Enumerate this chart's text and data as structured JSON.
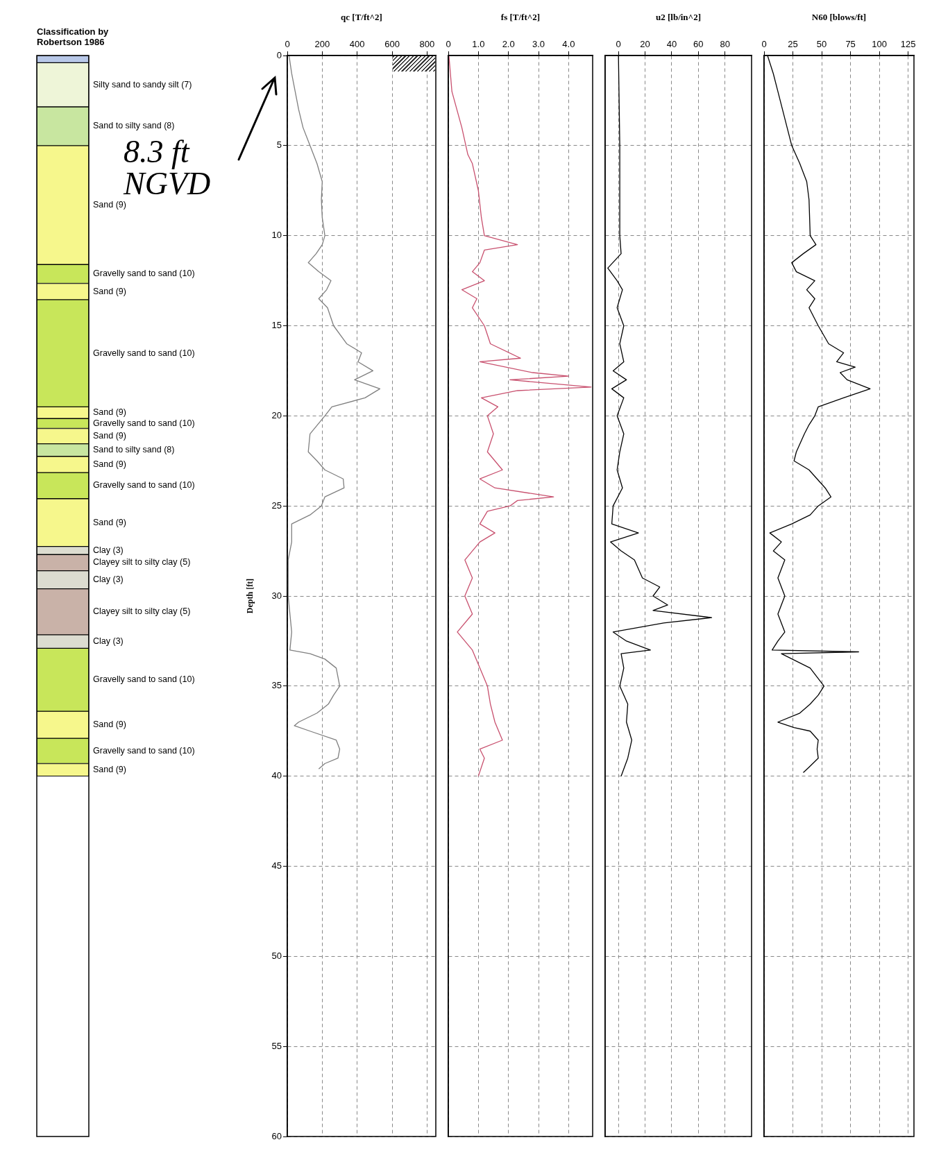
{
  "chart_data": [
    {
      "type": "bar",
      "title": "Classification by Robertson 1986",
      "categories": [
        null
      ],
      "stacked": true,
      "ylim": [
        60,
        0
      ],
      "tick_labels": false,
      "series": [
        {
          "color": "#b8c8e8",
          "values": [
            0.4
          ]
        },
        {
          "name": "Silty sand to sandy silt (7)",
          "color": "#eef5d8",
          "values": [
            2.45
          ]
        },
        {
          "name": "Sand to silty sand (8)",
          "color": "#c8e6a0",
          "values": [
            2.15
          ]
        },
        {
          "name": "Sand (9)",
          "color": "#f6f78c",
          "values": [
            6.6
          ]
        },
        {
          "name": "Gravelly sand to sand (10)",
          "color": "#c8e65a",
          "values": [
            1.05
          ]
        },
        {
          "name": "Sand (9)",
          "color": "#f6f78c",
          "values": [
            0.9
          ]
        },
        {
          "name": "Gravelly sand to sand (10)",
          "color": "#c8e65a",
          "values": [
            5.95
          ]
        },
        {
          "name": "Sand (9)",
          "color": "#f6f78c",
          "values": [
            0.65
          ]
        },
        {
          "name": "Gravelly sand to sand (10)",
          "color": "#c8e65a",
          "values": [
            0.55
          ]
        },
        {
          "name": "Sand (9)",
          "color": "#f6f78c",
          "values": [
            0.85
          ]
        },
        {
          "name": "Sand to silty sand (8)",
          "color": "#c8e6a0",
          "values": [
            0.7
          ]
        },
        {
          "name": "Sand (9)",
          "color": "#f6f78c",
          "values": [
            0.9
          ]
        },
        {
          "name": "Gravelly sand to sand (10)",
          "color": "#c8e65a",
          "values": [
            1.45
          ]
        },
        {
          "name": "Sand (9)",
          "color": "#f6f78c",
          "values": [
            2.65
          ]
        },
        {
          "name": "Clay (3)",
          "color": "#dcdcd0",
          "values": [
            0.45
          ]
        },
        {
          "name": "Clayey silt to silty clay (5)",
          "color": "#c9b2a8",
          "values": [
            0.9
          ]
        },
        {
          "name": "Clay (3)",
          "color": "#dcdcd0",
          "values": [
            1.0
          ]
        },
        {
          "name": "Clayey silt to silty clay (5)",
          "color": "#c9b2a8",
          "values": [
            2.55
          ]
        },
        {
          "name": "Clay (3)",
          "color": "#dcdcd0",
          "values": [
            0.75
          ]
        },
        {
          "name": "Gravelly sand to sand (10)",
          "color": "#c8e65a",
          "values": [
            3.5
          ]
        },
        {
          "name": "Sand (9)",
          "color": "#f6f78c",
          "values": [
            1.5
          ]
        },
        {
          "name": "Gravelly sand to sand (10)",
          "color": "#c8e65a",
          "values": [
            1.4
          ]
        },
        {
          "name": "Sand (9)",
          "color": "#f6f78c",
          "values": [
            0.7
          ]
        }
      ]
    },
    {
      "type": "line",
      "xlabel": "qc [T/ft^2]",
      "ylabel": "Depth [ft]",
      "annotations": [
        "8.3 ft NGVD"
      ],
      "xlim": [
        0,
        850
      ],
      "xticks": [
        0,
        200,
        400,
        600,
        800
      ],
      "ylim": [
        60,
        0
      ],
      "yticks": [
        0,
        5,
        10,
        15,
        20,
        25,
        30,
        35,
        40,
        45,
        50,
        55,
        60
      ],
      "grid": true,
      "marker": "none",
      "series": [
        {
          "color": "#7f7f7f",
          "x": [
            10,
            25,
            45,
            65,
            90,
            130,
            170,
            200,
            195,
            200,
            215,
            200,
            165,
            120,
            180,
            250,
            225,
            180,
            230,
            265,
            340,
            425,
            405,
            490,
            385,
            530,
            445,
            255,
            215,
            130,
            120,
            170,
            215,
            320,
            325,
            215,
            195,
            130,
            25,
            25,
            5,
            5,
            25,
            15,
            130,
            215,
            280,
            300,
            265,
            235,
            170,
            65,
            40,
            130,
            280,
            300,
            290,
            215,
            180
          ],
          "values": [
            0,
            1,
            2,
            3,
            4,
            5,
            6,
            7,
            8,
            9,
            10,
            10.5,
            11,
            11.5,
            12,
            12.5,
            13,
            13.5,
            14,
            15,
            16,
            16.5,
            17,
            17.5,
            18,
            18.5,
            19,
            19.5,
            20,
            21,
            22,
            22.5,
            23,
            23.5,
            24,
            24.5,
            25,
            25.5,
            26,
            27,
            28,
            30,
            32,
            33,
            33.2,
            33.5,
            34,
            35,
            35.5,
            36,
            36.5,
            37,
            37.2,
            37.5,
            38,
            38.5,
            39,
            39.3,
            39.6
          ]
        }
      ]
    },
    {
      "type": "line",
      "xlabel": "fs [T/ft^2]",
      "xlim": [
        0,
        4.8
      ],
      "xticks": [
        0,
        {
          "value": 1,
          "label": "1.0"
        },
        {
          "value": 2,
          "label": "2.0"
        },
        {
          "value": 3,
          "label": "3.0"
        },
        {
          "value": 4,
          "label": "4.0"
        }
      ],
      "ylim": [
        60,
        0
      ],
      "yticks": [
        0,
        5,
        10,
        15,
        20,
        25,
        30,
        35,
        40,
        45,
        50,
        55,
        60
      ],
      "tick_labels": "x",
      "grid": true,
      "marker": "none",
      "series": [
        {
          "color": "#c8506e",
          "x": [
            0.02,
            0.12,
            0.45,
            0.65,
            0.8,
            1.0,
            1.1,
            1.2,
            2.3,
            1.2,
            1.05,
            0.8,
            1.2,
            0.45,
            0.95,
            0.8,
            1.2,
            1.4,
            2.4,
            1.05,
            2.8,
            4.0,
            2.05,
            4.75,
            2.3,
            1.1,
            1.65,
            1.3,
            1.5,
            1.3,
            1.8,
            1.05,
            1.55,
            3.5,
            2.3,
            2.05,
            1.3,
            1.05,
            1.55,
            1.05,
            0.55,
            0.8,
            0.55,
            0.8,
            0.3,
            0.8,
            1.05,
            1.3,
            1.4,
            1.55,
            1.8,
            1.05,
            1.2,
            1.0
          ],
          "values": [
            0,
            2,
            4,
            5.5,
            6,
            7.5,
            9,
            10,
            10.5,
            10.8,
            11.5,
            12,
            12.5,
            13,
            13.5,
            14,
            15,
            16,
            16.8,
            17,
            17.6,
            17.8,
            18,
            18.4,
            18.6,
            19,
            19.5,
            20,
            21,
            22,
            23,
            23.5,
            24,
            24.5,
            24.7,
            25,
            25.3,
            26,
            26.5,
            27,
            28,
            29,
            30,
            31,
            32,
            33,
            34,
            35,
            36,
            37,
            38,
            38.5,
            39,
            40
          ]
        }
      ]
    },
    {
      "type": "line",
      "xlabel": "u2 [lb/in^2]",
      "xlim": [
        -10,
        100
      ],
      "xticks": [
        0,
        20,
        40,
        60,
        80
      ],
      "ylim": [
        60,
        0
      ],
      "yticks": [
        0,
        5,
        10,
        15,
        20,
        25,
        30,
        35,
        40,
        45,
        50,
        55,
        60
      ],
      "tick_labels": "x",
      "grid": true,
      "marker": "none",
      "series": [
        {
          "color": "#000000",
          "x": [
            0,
            1,
            1,
            2,
            -8,
            -1,
            3,
            -1,
            4,
            1,
            4,
            -4,
            6,
            -5,
            4,
            -1,
            4,
            1,
            -1,
            3,
            -4,
            -5,
            15,
            -6,
            2,
            12,
            18,
            31,
            26,
            37,
            26,
            70,
            34,
            -4,
            6,
            24,
            2,
            4,
            1,
            7,
            6,
            10,
            7,
            2
          ],
          "values": [
            0,
            5,
            10,
            11,
            11.8,
            12.5,
            13,
            14,
            15,
            16,
            17,
            17.5,
            18,
            18.5,
            19,
            20,
            21,
            22,
            23,
            24,
            25,
            26,
            26.5,
            27,
            27.5,
            28,
            29,
            29.5,
            30,
            30.5,
            30.8,
            31.2,
            31.5,
            32,
            32.5,
            33,
            33.2,
            34,
            35,
            36,
            37,
            38,
            39,
            40
          ]
        }
      ]
    },
    {
      "type": "line",
      "xlabel": "N60 [blows/ft]",
      "xlim": [
        0,
        130
      ],
      "xticks": [
        0,
        25,
        50,
        75,
        100,
        125
      ],
      "ylim": [
        60,
        0
      ],
      "yticks": [
        0,
        5,
        10,
        15,
        20,
        25,
        30,
        35,
        40,
        45,
        50,
        55,
        60
      ],
      "tick_labels": "x",
      "grid": true,
      "marker": "none",
      "series": [
        {
          "color": "#000000",
          "x": [
            3,
            8,
            12,
            16,
            20,
            24,
            31,
            37,
            39,
            40,
            45,
            34,
            24,
            28,
            44,
            37,
            44,
            39,
            47,
            56,
            69,
            63,
            79,
            66,
            72,
            92,
            69,
            47,
            44,
            39,
            35,
            28,
            26,
            39,
            53,
            58,
            47,
            40,
            24,
            5,
            15,
            8,
            18,
            12,
            18,
            12,
            18,
            12,
            7,
            82,
            15,
            40,
            52,
            47,
            40,
            31,
            12,
            26,
            40,
            47,
            46,
            47,
            39,
            34
          ],
          "values": [
            0,
            1,
            2,
            3,
            4,
            5,
            6,
            7,
            8,
            10,
            10.5,
            11,
            11.5,
            12,
            12.5,
            13,
            13.5,
            14,
            15,
            16,
            16.5,
            17,
            17.3,
            17.6,
            18,
            18.5,
            19,
            19.5,
            20,
            20.5,
            21,
            22,
            22.5,
            23,
            24,
            24.5,
            25,
            25.5,
            26,
            26.5,
            27,
            27.5,
            28,
            29,
            30,
            31,
            32,
            32.5,
            33,
            33.1,
            33.2,
            34,
            35,
            35.5,
            36,
            36.5,
            37,
            37.3,
            37.5,
            38,
            38.5,
            39,
            39.5,
            39.8
          ]
        }
      ]
    }
  ]
}
